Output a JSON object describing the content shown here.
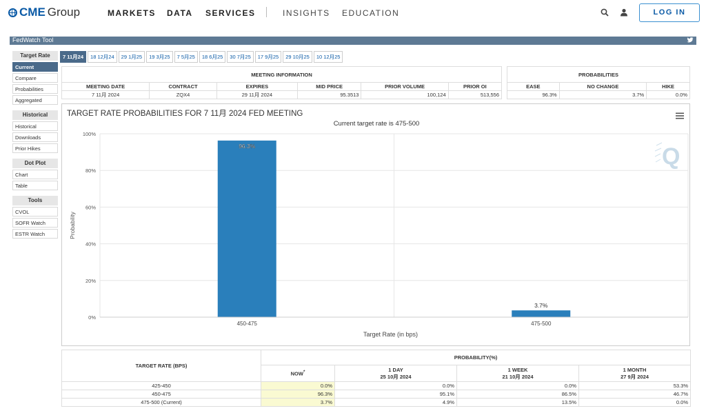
{
  "nav": {
    "logo_brand": "CME",
    "logo_rest": "Group",
    "items": [
      "MARKETS",
      "DATA",
      "SERVICES",
      "INSIGHTS",
      "EDUCATION"
    ],
    "login": "LOG IN"
  },
  "tool_title": "FedWatch Tool",
  "sidebar": {
    "sections": [
      {
        "head": "Target Rate",
        "items": [
          "Current",
          "Compare",
          "Probabilities",
          "Aggregated"
        ]
      },
      {
        "head": "Historical",
        "items": [
          "Historical",
          "Downloads",
          "Prior Hikes"
        ]
      },
      {
        "head": "Dot Plot",
        "items": [
          "Chart",
          "Table"
        ]
      },
      {
        "head": "Tools",
        "items": [
          "CVOL",
          "SOFR Watch",
          "ESTR Watch"
        ]
      }
    ],
    "active": "Current"
  },
  "tabs": [
    "7 11月24",
    "18 12月24",
    "29 1月25",
    "19 3月25",
    "7 5月25",
    "18 6月25",
    "30 7月25",
    "17 9月25",
    "29 10月25",
    "10 12月25"
  ],
  "meeting_info": {
    "title": "MEETING INFORMATION",
    "headers": [
      "MEETING DATE",
      "CONTRACT",
      "EXPIRES",
      "MID PRICE",
      "PRIOR VOLUME",
      "PRIOR OI"
    ],
    "values": [
      "7 11月 2024",
      "ZQX4",
      "29 11月 2024",
      "95.3513",
      "100,124",
      "513,556"
    ]
  },
  "probabilities": {
    "title": "PROBABILITIES",
    "headers": [
      "EASE",
      "NO CHANGE",
      "HIKE"
    ],
    "values": [
      "96.3%",
      "3.7%",
      "0.0%"
    ]
  },
  "chart_data": {
    "type": "bar",
    "title": "TARGET RATE PROBABILITIES FOR 7 11月 2024 FED MEETING",
    "subtitle": "Current target rate is 475-500",
    "categories": [
      "450-475",
      "475-500"
    ],
    "values": [
      96.3,
      3.7
    ],
    "data_labels": [
      "96.3%",
      "3.7%"
    ],
    "xlabel": "Target Rate (in bps)",
    "ylabel": "Probability",
    "ylim": [
      0,
      100
    ],
    "yticks": [
      "0%",
      "20%",
      "40%",
      "60%",
      "80%",
      "100%"
    ],
    "bar_color": "#2a7fbb",
    "grid": true
  },
  "prob_table": {
    "col_head": "TARGET RATE (BPS)",
    "group_head": "PROBABILITY(%)",
    "periods": [
      {
        "label": "NOW",
        "sup": "*",
        "date": ""
      },
      {
        "label": "1 DAY",
        "date": "25 10月 2024"
      },
      {
        "label": "1 WEEK",
        "date": "21 10月 2024"
      },
      {
        "label": "1 MONTH",
        "date": "27 9月 2024"
      }
    ],
    "rows": [
      {
        "rate": "425-450",
        "vals": [
          "0.0%",
          "0.0%",
          "0.0%",
          "53.3%"
        ]
      },
      {
        "rate": "450-475",
        "vals": [
          "96.3%",
          "95.1%",
          "86.5%",
          "46.7%"
        ]
      },
      {
        "rate": "475-500 (Current)",
        "vals": [
          "3.7%",
          "4.9%",
          "13.5%",
          "0.0%"
        ]
      }
    ]
  },
  "colors": {
    "accent": "#0a5aa6",
    "toolbar": "#5e7a94",
    "active": "#4a6a8a",
    "highlight": "#fafad2"
  }
}
